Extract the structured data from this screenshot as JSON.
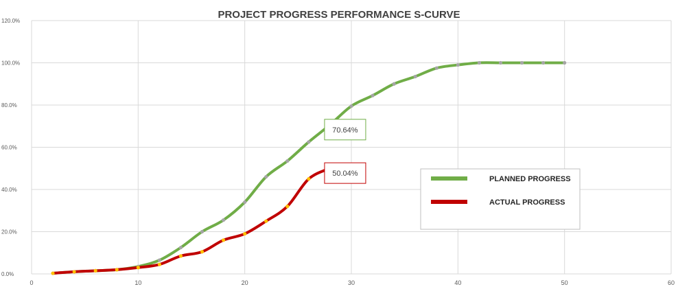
{
  "chart_data": {
    "type": "line",
    "title": "PROJECT PROGRESS PERFORMANCE S-CURVE",
    "xlabel": "",
    "ylabel": "",
    "xlim": [
      0,
      60
    ],
    "ylim": [
      0,
      120
    ],
    "x_ticks": [
      "0",
      "10",
      "20",
      "30",
      "40",
      "50",
      "60"
    ],
    "y_ticks": [
      "0.0%",
      "20.0%",
      "40.0%",
      "60.0%",
      "80.0%",
      "100.0%",
      "120.0%"
    ],
    "grid": true,
    "legend_position": "right",
    "series": [
      {
        "name": "PLANNED PROGRESS",
        "color": "#70AD47",
        "marker_color": "#A5A5A5",
        "x": [
          2,
          4,
          6,
          8,
          10,
          12,
          14,
          16,
          18,
          20,
          22,
          24,
          26,
          28,
          30,
          32,
          34,
          36,
          38,
          40,
          42,
          44,
          46,
          48,
          50
        ],
        "y": [
          0.3,
          1,
          1.5,
          2,
          3.5,
          6.5,
          12.5,
          20,
          25.5,
          34,
          46,
          53.5,
          62.5,
          70.64,
          79.5,
          84.5,
          90,
          93.5,
          97.5,
          99,
          100,
          100,
          100,
          100,
          100
        ]
      },
      {
        "name": "ACTUAL PROGRESS",
        "color": "#C00000",
        "marker_color": "#FFC000",
        "x": [
          2,
          4,
          6,
          8,
          10,
          12,
          14,
          16,
          18,
          20,
          22,
          24,
          26,
          28
        ],
        "y": [
          0.3,
          1,
          1.5,
          2,
          3,
          4.5,
          8.5,
          10.5,
          16,
          19,
          25,
          32,
          45,
          50.04
        ]
      }
    ],
    "annotations": [
      {
        "text": "70.64%",
        "series": 0,
        "x": 28,
        "y": 70.64,
        "border_color": "#70AD47"
      },
      {
        "text": "50.04%",
        "series": 1,
        "x": 28,
        "y": 50.04,
        "border_color": "#C00000"
      }
    ]
  }
}
